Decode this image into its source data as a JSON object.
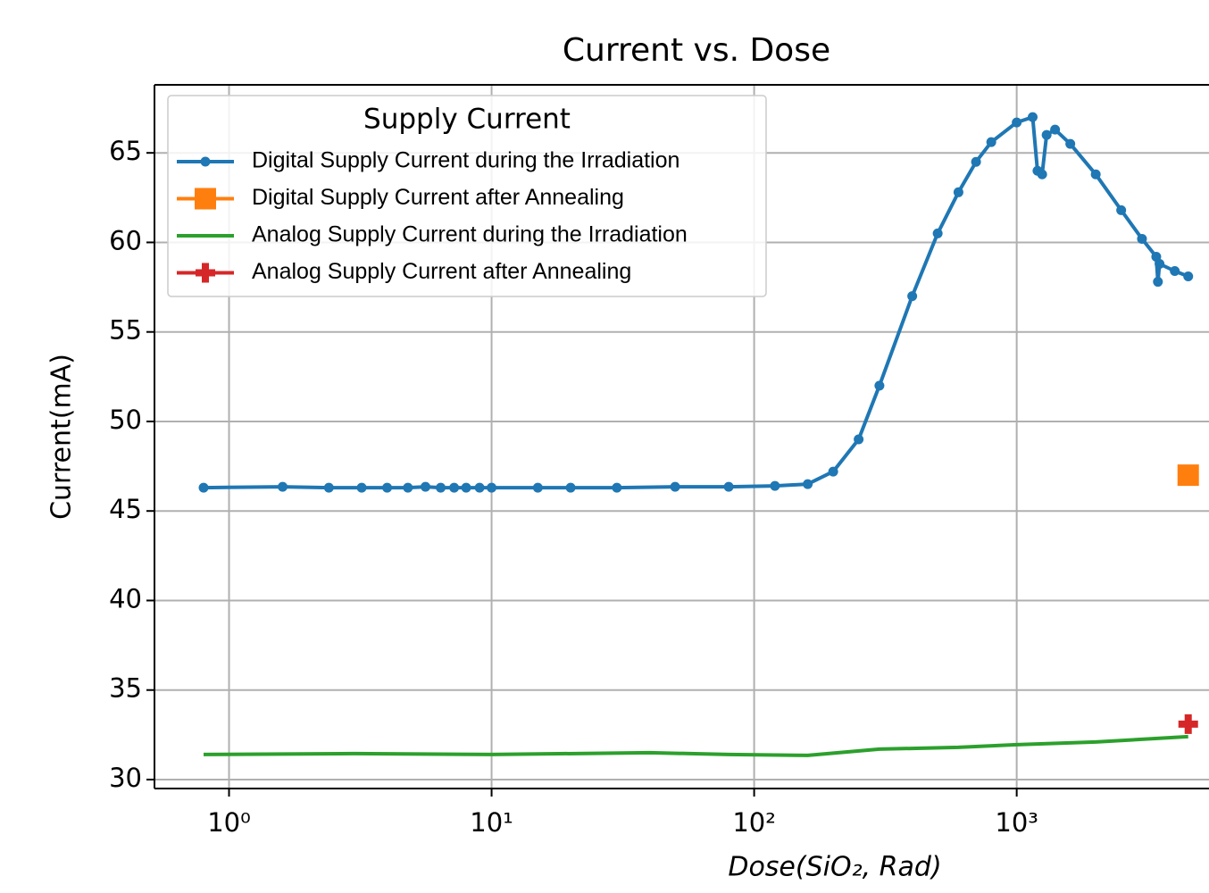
{
  "chart_data": {
    "type": "line",
    "title": "Current vs. Dose",
    "x_label": "Dose(SiO₂, Rad)",
    "y_label": "Current(mA)",
    "legend_title": "Supply Current",
    "legend": "upper left",
    "xscale": "log",
    "grid": true,
    "xlim": [
      0.52,
      5400
    ],
    "ylim": [
      29.5,
      68.8
    ],
    "xticks": [
      {
        "value": 1,
        "label": "10⁰"
      },
      {
        "value": 10,
        "label": "10¹"
      },
      {
        "value": 100,
        "label": "10²"
      },
      {
        "value": 1000,
        "label": "10³"
      }
    ],
    "yticks": [
      30,
      35,
      40,
      45,
      50,
      55,
      60,
      65
    ],
    "series": [
      {
        "name": "Digital Supply Current during the Irradiation",
        "color": "#1f77b4",
        "marker": "o",
        "x": [
          0.8,
          1.6,
          2.4,
          3.2,
          4.0,
          4.8,
          5.6,
          6.4,
          7.2,
          8,
          9,
          10,
          15,
          20,
          30,
          50,
          80,
          120,
          160,
          200,
          250,
          300,
          400,
          500,
          600,
          700,
          800,
          1000,
          1150,
          1200,
          1250,
          1300,
          1400,
          1600,
          2000,
          2500,
          3000,
          3400,
          3450,
          3500,
          4000,
          4500
        ],
        "values": [
          46.3,
          46.35,
          46.3,
          46.3,
          46.3,
          46.3,
          46.35,
          46.3,
          46.3,
          46.3,
          46.3,
          46.3,
          46.3,
          46.3,
          46.3,
          46.35,
          46.35,
          46.4,
          46.5,
          47.2,
          49,
          52,
          57,
          60.5,
          62.8,
          64.5,
          65.6,
          66.7,
          67,
          64,
          63.8,
          66,
          66.3,
          65.5,
          63.8,
          61.8,
          60.2,
          59.2,
          57.8,
          58.8,
          58.4,
          58.1
        ]
      },
      {
        "name": "Digital Supply Current after Annealing",
        "color": "#ff7f0e",
        "marker": "s",
        "x": [
          4500
        ],
        "values": [
          47
        ]
      },
      {
        "name": "Analog Supply Current during the Irradiation",
        "color": "#2ca02c",
        "marker": "none",
        "x": [
          0.8,
          3,
          10,
          40,
          80,
          160,
          300,
          600,
          1000,
          2000,
          4500
        ],
        "values": [
          31.4,
          31.45,
          31.4,
          31.5,
          31.4,
          31.35,
          31.7,
          31.8,
          31.95,
          32.1,
          32.4
        ]
      },
      {
        "name": "Analog Supply Current after Annealing",
        "color": "#d62728",
        "marker": "P",
        "x": [
          4500
        ],
        "values": [
          33.1
        ]
      }
    ]
  }
}
